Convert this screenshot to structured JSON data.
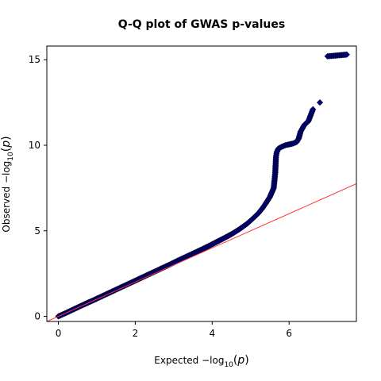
{
  "chart_data": {
    "type": "scatter",
    "title": "Q-Q plot of GWAS p-values",
    "xlabel": {
      "prefix": "Expected  −log",
      "sub": "10",
      "suffix": "(",
      "var": "p",
      "close": ")"
    },
    "ylabel": {
      "prefix": "Observed  −log",
      "sub": "10",
      "suffix": "(",
      "var": "p",
      "close": ")"
    },
    "xlim": [
      -0.3,
      7.75
    ],
    "ylim": [
      -0.3,
      15.8
    ],
    "xticks": [
      0,
      2,
      4,
      6
    ],
    "yticks": [
      0,
      5,
      10,
      15
    ],
    "grid": false,
    "reference_line": {
      "slope": 1,
      "intercept": 0,
      "color": "#ff3333"
    },
    "marker_color": "#00008b",
    "series": [
      {
        "points": [
          [
            0.0,
            0.0
          ],
          [
            0.1,
            0.1
          ],
          [
            0.2,
            0.2
          ],
          [
            0.35,
            0.36
          ],
          [
            0.5,
            0.52
          ],
          [
            0.7,
            0.73
          ],
          [
            0.9,
            0.93
          ],
          [
            1.1,
            1.14
          ],
          [
            1.3,
            1.35
          ],
          [
            1.5,
            1.56
          ],
          [
            1.7,
            1.77
          ],
          [
            1.9,
            1.98
          ],
          [
            2.1,
            2.19
          ],
          [
            2.3,
            2.4
          ],
          [
            2.5,
            2.61
          ],
          [
            2.7,
            2.82
          ],
          [
            2.9,
            3.03
          ],
          [
            3.1,
            3.25
          ],
          [
            3.3,
            3.46
          ],
          [
            3.5,
            3.67
          ],
          [
            3.7,
            3.88
          ],
          [
            3.9,
            4.1
          ],
          [
            4.1,
            4.33
          ],
          [
            4.3,
            4.56
          ],
          [
            4.5,
            4.8
          ],
          [
            4.7,
            5.08
          ],
          [
            4.9,
            5.4
          ],
          [
            5.05,
            5.7
          ],
          [
            5.2,
            6.02
          ],
          [
            5.3,
            6.3
          ],
          [
            5.4,
            6.62
          ],
          [
            5.5,
            6.98
          ],
          [
            5.6,
            7.5
          ],
          [
            5.64,
            8.4
          ],
          [
            5.65,
            8.9
          ],
          [
            5.66,
            9.35
          ],
          [
            5.68,
            9.6
          ],
          [
            5.72,
            9.8
          ],
          [
            5.8,
            9.9
          ],
          [
            5.9,
            10.0
          ],
          [
            6.0,
            10.05
          ],
          [
            6.1,
            10.1
          ],
          [
            6.2,
            10.2
          ],
          [
            6.25,
            10.4
          ],
          [
            6.3,
            10.8
          ],
          [
            6.4,
            11.2
          ],
          [
            6.5,
            11.4
          ],
          [
            6.62,
            12.1
          ],
          [
            6.8,
            12.5
          ],
          [
            7.0,
            15.2
          ],
          [
            7.5,
            15.3
          ]
        ]
      }
    ]
  }
}
